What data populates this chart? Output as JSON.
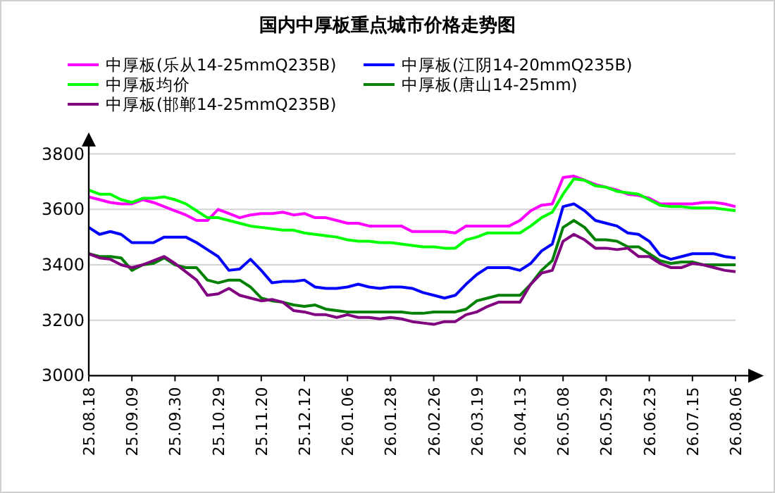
{
  "chart_data": {
    "type": "line",
    "title": "国内中厚板重点城市价格走势图",
    "categories": [
      "25.08.18",
      null,
      null,
      null,
      "25.09.09",
      null,
      null,
      null,
      "25.09.30",
      null,
      null,
      null,
      "25.10.29",
      null,
      null,
      null,
      "25.11.20",
      null,
      null,
      null,
      "25.12.12",
      null,
      null,
      null,
      "26.01.06",
      null,
      null,
      null,
      "26.01.28",
      null,
      null,
      null,
      "26.02.26",
      null,
      null,
      null,
      "26.03.19",
      null,
      null,
      null,
      "26.04.13",
      null,
      null,
      null,
      "26.05.08",
      null,
      null,
      null,
      "26.05.29",
      null,
      null,
      null,
      "26.06.23",
      null,
      null,
      null,
      "26.07.15",
      null,
      null,
      null,
      "26.08.06"
    ],
    "series": [
      {
        "name": "中厚板(乐从14-25mmQ235B)",
        "color": "#ff00ff",
        "values": [
          3645,
          3635,
          3625,
          3620,
          3620,
          3635,
          3625,
          3610,
          3595,
          3580,
          3560,
          3560,
          3600,
          3585,
          3570,
          3580,
          3585,
          3585,
          3590,
          3580,
          3585,
          3570,
          3570,
          3560,
          3550,
          3550,
          3540,
          3540,
          3540,
          3540,
          3520,
          3520,
          3520,
          3520,
          3515,
          3540,
          3540,
          3540,
          3540,
          3540,
          3560,
          3595,
          3615,
          3620,
          3715,
          3720,
          3705,
          3690,
          3680,
          3670,
          3655,
          3650,
          3640,
          3620,
          3620,
          3620,
          3620,
          3625,
          3625,
          3620,
          3610
        ]
      },
      {
        "name": "中厚板(江阴14-20mmQ235B)",
        "color": "#0000ff",
        "values": [
          3535,
          3510,
          3520,
          3510,
          3480,
          3480,
          3480,
          3500,
          3500,
          3500,
          3480,
          3455,
          3430,
          3380,
          3385,
          3420,
          3380,
          3335,
          3340,
          3340,
          3345,
          3320,
          3315,
          3315,
          3320,
          3330,
          3320,
          3315,
          3320,
          3320,
          3315,
          3300,
          3290,
          3280,
          3290,
          3330,
          3365,
          3390,
          3390,
          3390,
          3380,
          3405,
          3450,
          3475,
          3610,
          3620,
          3595,
          3560,
          3550,
          3540,
          3515,
          3510,
          3485,
          3435,
          3420,
          3430,
          3440,
          3440,
          3440,
          3430,
          3425
        ]
      },
      {
        "name": "中厚板均价",
        "color": "#00ff00",
        "values": [
          3670,
          3655,
          3655,
          3635,
          3625,
          3640,
          3640,
          3645,
          3635,
          3620,
          3595,
          3570,
          3570,
          3560,
          3550,
          3540,
          3535,
          3530,
          3525,
          3525,
          3515,
          3510,
          3505,
          3500,
          3490,
          3485,
          3485,
          3480,
          3480,
          3475,
          3470,
          3465,
          3465,
          3460,
          3460,
          3490,
          3500,
          3515,
          3515,
          3515,
          3515,
          3540,
          3570,
          3590,
          3655,
          3710,
          3705,
          3685,
          3680,
          3665,
          3660,
          3655,
          3635,
          3615,
          3610,
          3610,
          3605,
          3605,
          3605,
          3600,
          3595
        ]
      },
      {
        "name": "中厚板(唐山14-25mm)",
        "color": "#008000",
        "values": [
          3440,
          3430,
          3430,
          3425,
          3380,
          3400,
          3405,
          3425,
          3400,
          3390,
          3390,
          3345,
          3335,
          3345,
          3345,
          3320,
          3280,
          3270,
          3265,
          3255,
          3250,
          3255,
          3240,
          3235,
          3230,
          3230,
          3230,
          3230,
          3230,
          3230,
          3225,
          3225,
          3230,
          3230,
          3230,
          3240,
          3270,
          3280,
          3290,
          3290,
          3290,
          3330,
          3380,
          3415,
          3535,
          3560,
          3535,
          3490,
          3490,
          3485,
          3465,
          3465,
          3440,
          3415,
          3405,
          3410,
          3410,
          3400,
          3400,
          3400,
          3400
        ]
      },
      {
        "name": "中厚板(邯郸14-25mmQ235B)",
        "color": "#800080",
        "values": [
          3440,
          3425,
          3420,
          3400,
          3390,
          3400,
          3415,
          3430,
          3405,
          3375,
          3345,
          3290,
          3295,
          3315,
          3290,
          3280,
          3270,
          3275,
          3265,
          3235,
          3230,
          3220,
          3220,
          3210,
          3220,
          3210,
          3210,
          3205,
          3210,
          3205,
          3195,
          3190,
          3185,
          3195,
          3195,
          3220,
          3230,
          3250,
          3265,
          3265,
          3265,
          3330,
          3370,
          3380,
          3485,
          3510,
          3490,
          3460,
          3460,
          3455,
          3460,
          3430,
          3430,
          3405,
          3390,
          3390,
          3405,
          3400,
          3390,
          3380,
          3375
        ]
      }
    ],
    "ylim": [
      3000,
      3800
    ],
    "yticks": [
      3000,
      3200,
      3400,
      3600,
      3800
    ],
    "grid": "y",
    "legend": "top",
    "marker": "none",
    "line_style": "solid"
  }
}
